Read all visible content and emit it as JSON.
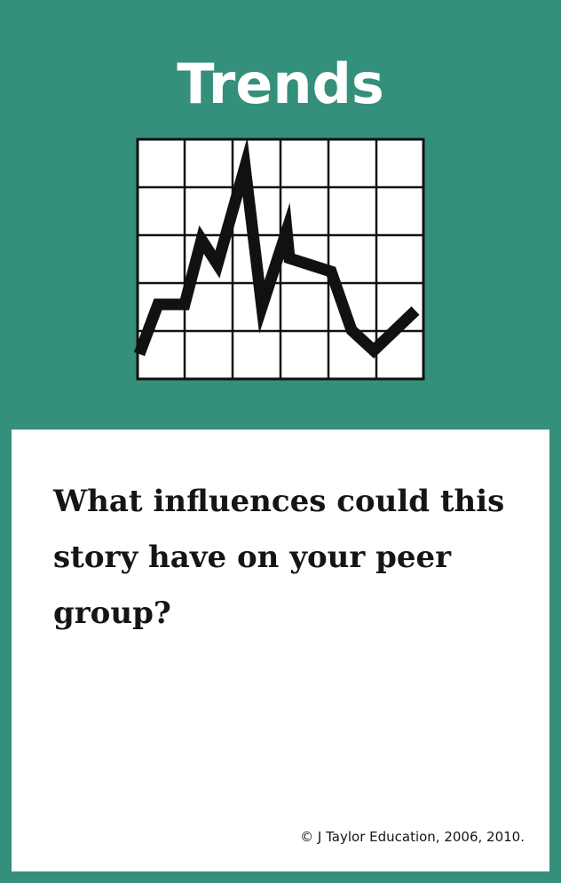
{
  "card": {
    "title": "Trends",
    "icon": "line-graph-icon",
    "question": "What influences could this story have on your peer group?",
    "copyright": "© J Taylor Education, 2006, 2010.",
    "colors": {
      "background": "#348f7b",
      "panel": "#ffffff",
      "text": "#151515",
      "title_text": "#ffffff"
    }
  }
}
